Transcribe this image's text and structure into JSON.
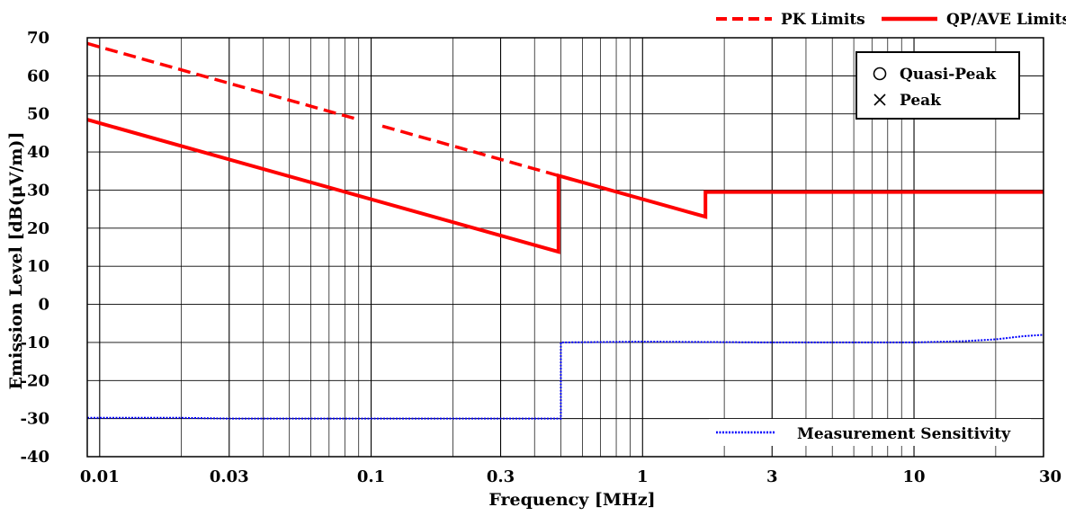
{
  "chart_data": {
    "type": "line",
    "title": "",
    "xlabel": "Frequency [MHz]",
    "ylabel": "Emission Level [dB(μV/m)]",
    "x_scale": "log",
    "xlim": [
      0.009,
      30
    ],
    "ylim": [
      -40,
      70
    ],
    "grid": true,
    "x_ticks": [
      {
        "value": 0.01,
        "label": "0.01"
      },
      {
        "value": 0.03,
        "label": "0.03"
      },
      {
        "value": 0.1,
        "label": "0.1"
      },
      {
        "value": 0.3,
        "label": "0.3"
      },
      {
        "value": 1,
        "label": "1"
      },
      {
        "value": 3,
        "label": "3"
      },
      {
        "value": 10,
        "label": "10"
      },
      {
        "value": 30,
        "label": "30"
      }
    ],
    "y_ticks": [
      {
        "value": 70,
        "label": "70"
      },
      {
        "value": 60,
        "label": "60"
      },
      {
        "value": 50,
        "label": "50"
      },
      {
        "value": 40,
        "label": "40"
      },
      {
        "value": 30,
        "label": "30"
      },
      {
        "value": 20,
        "label": "20"
      },
      {
        "value": 10,
        "label": "10"
      },
      {
        "value": 0,
        "label": "0"
      },
      {
        "value": -10,
        "label": "-10"
      },
      {
        "value": -20,
        "label": "-20"
      },
      {
        "value": -30,
        "label": "-30"
      },
      {
        "value": -40,
        "label": "-40"
      }
    ],
    "series": [
      {
        "name": "PK Limits",
        "style": "dashed",
        "color": "#ff0000",
        "segments": [
          [
            {
              "x": 0.009,
              "y": 68.5
            },
            {
              "x": 0.09,
              "y": 48.5
            }
          ],
          [
            {
              "x": 0.11,
              "y": 46.8
            },
            {
              "x": 0.49,
              "y": 33.8
            }
          ]
        ]
      },
      {
        "name": "QP/AVE Limits",
        "style": "solid",
        "color": "#ff0000",
        "segments": [
          [
            {
              "x": 0.009,
              "y": 48.5
            },
            {
              "x": 0.49,
              "y": 13.8
            },
            {
              "x": 0.49,
              "y": 33.8
            },
            {
              "x": 1.705,
              "y": 23.0
            },
            {
              "x": 1.705,
              "y": 29.5
            },
            {
              "x": 30,
              "y": 29.5
            }
          ]
        ]
      },
      {
        "name": "Measurement Sensitivity",
        "style": "dotted",
        "color": "#0000ff",
        "segments": [
          [
            {
              "x": 0.009,
              "y": -29.8
            },
            {
              "x": 0.02,
              "y": -29.8
            },
            {
              "x": 0.03,
              "y": -30.0
            },
            {
              "x": 0.1,
              "y": -30.0
            },
            {
              "x": 0.3,
              "y": -30.0
            },
            {
              "x": 0.5,
              "y": -30.0
            },
            {
              "x": 0.5,
              "y": -10.0
            },
            {
              "x": 1,
              "y": -9.8
            },
            {
              "x": 3,
              "y": -10.0
            },
            {
              "x": 10,
              "y": -10.0
            },
            {
              "x": 15,
              "y": -9.7
            },
            {
              "x": 20,
              "y": -9.2
            },
            {
              "x": 25,
              "y": -8.4
            },
            {
              "x": 30,
              "y": -8.0
            }
          ]
        ]
      }
    ],
    "legend_top": [
      {
        "label": "PK Limits",
        "style": "dashed",
        "color": "#ff0000"
      },
      {
        "label": "QP/AVE Limits",
        "style": "solid",
        "color": "#ff0000"
      }
    ],
    "legend_box": {
      "placement": "top-right",
      "items": [
        {
          "symbol": "circle",
          "label": "Quasi-Peak"
        },
        {
          "symbol": "cross",
          "label": "Peak"
        }
      ]
    },
    "legend_bottom": {
      "placement": "bottom-right",
      "label": "Measurement Sensitivity",
      "style": "dotted",
      "color": "#0000ff"
    }
  }
}
